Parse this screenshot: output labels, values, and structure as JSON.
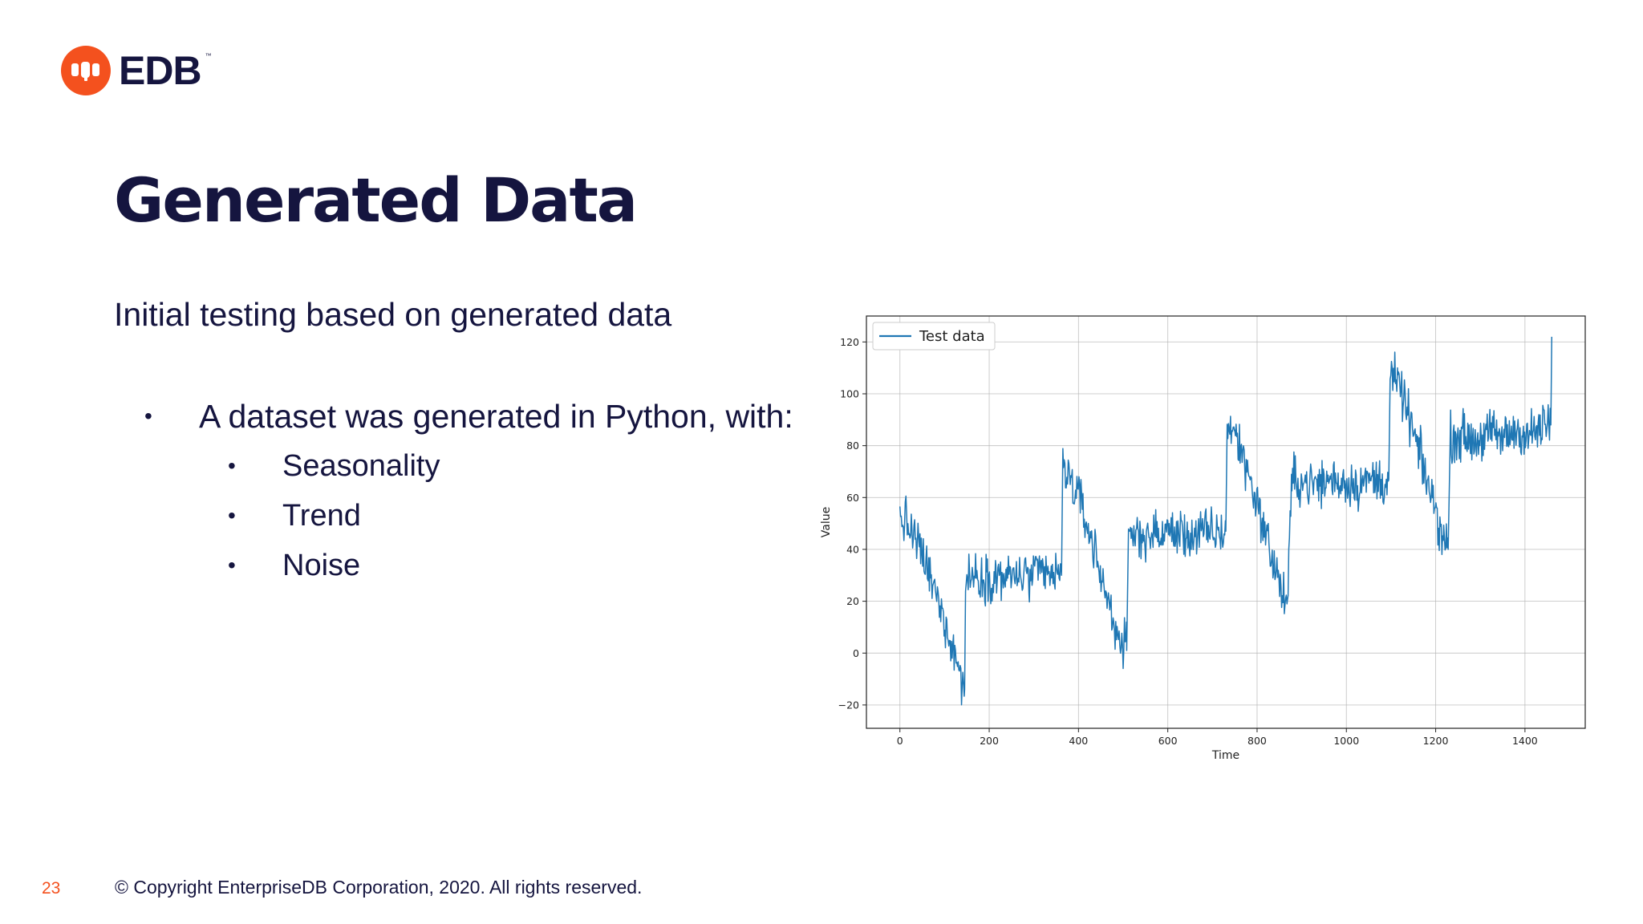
{
  "logo": {
    "text": "EDB",
    "tm": "™",
    "color": "#f4511e"
  },
  "slide": {
    "title": "Generated Data",
    "subtitle": "Initial testing based on generated data",
    "bullet": "A dataset was generated in Python, with:",
    "sub_bullets": [
      "Seasonality",
      "Trend",
      "Noise"
    ],
    "bullet_glyph": "•",
    "page_number": "23",
    "copyright": "© Copyright EnterpriseDB Corporation, 2020. All rights reserved."
  },
  "chart_data": {
    "type": "line",
    "title": "",
    "xlabel": "Time",
    "ylabel": "Value",
    "xlim": [
      -75,
      1535
    ],
    "ylim": [
      -29,
      130
    ],
    "xticks": [
      0,
      200,
      400,
      600,
      800,
      1000,
      1200,
      1400
    ],
    "yticks": [
      -20,
      0,
      20,
      40,
      60,
      80,
      100,
      120
    ],
    "ytick_labels": [
      "−20",
      "0",
      "20",
      "40",
      "60",
      "80",
      "100",
      "120"
    ],
    "grid": true,
    "legend": "top-left",
    "color": "#1f77b4",
    "series": [
      {
        "name": "Test data",
        "points": [
          [
            0,
            52
          ],
          [
            15,
            50
          ],
          [
            30,
            45
          ],
          [
            45,
            40
          ],
          [
            60,
            33
          ],
          [
            75,
            25
          ],
          [
            90,
            18
          ],
          [
            105,
            10
          ],
          [
            120,
            2
          ],
          [
            135,
            -8
          ],
          [
            145,
            -14
          ],
          [
            147,
            28
          ],
          [
            165,
            30
          ],
          [
            190,
            29
          ],
          [
            215,
            30
          ],
          [
            240,
            29
          ],
          [
            265,
            30
          ],
          [
            290,
            29
          ],
          [
            315,
            31
          ],
          [
            340,
            30
          ],
          [
            362,
            30
          ],
          [
            365,
            72
          ],
          [
            380,
            68
          ],
          [
            395,
            62
          ],
          [
            410,
            55
          ],
          [
            425,
            46
          ],
          [
            440,
            37
          ],
          [
            455,
            27
          ],
          [
            470,
            18
          ],
          [
            485,
            9
          ],
          [
            500,
            3
          ],
          [
            508,
            1
          ],
          [
            512,
            45
          ],
          [
            540,
            46
          ],
          [
            570,
            45
          ],
          [
            600,
            47
          ],
          [
            630,
            46
          ],
          [
            660,
            45
          ],
          [
            690,
            47
          ],
          [
            720,
            46
          ],
          [
            730,
            47
          ],
          [
            733,
            88
          ],
          [
            750,
            85
          ],
          [
            765,
            78
          ],
          [
            780,
            70
          ],
          [
            795,
            61
          ],
          [
            810,
            52
          ],
          [
            825,
            42
          ],
          [
            840,
            33
          ],
          [
            855,
            24
          ],
          [
            868,
            19
          ],
          [
            878,
            67
          ],
          [
            905,
            66
          ],
          [
            935,
            65
          ],
          [
            965,
            67
          ],
          [
            995,
            66
          ],
          [
            1025,
            65
          ],
          [
            1055,
            67
          ],
          [
            1085,
            66
          ],
          [
            1095,
            67
          ],
          [
            1098,
            107
          ],
          [
            1115,
            104
          ],
          [
            1130,
            97
          ],
          [
            1145,
            88
          ],
          [
            1160,
            79
          ],
          [
            1175,
            70
          ],
          [
            1190,
            61
          ],
          [
            1205,
            52
          ],
          [
            1218,
            44
          ],
          [
            1228,
            40
          ],
          [
            1232,
            83
          ],
          [
            1260,
            84
          ],
          [
            1290,
            82
          ],
          [
            1320,
            85
          ],
          [
            1350,
            83
          ],
          [
            1380,
            86
          ],
          [
            1410,
            84
          ],
          [
            1440,
            87
          ],
          [
            1458,
            88
          ],
          [
            1460,
            122
          ]
        ]
      }
    ]
  }
}
